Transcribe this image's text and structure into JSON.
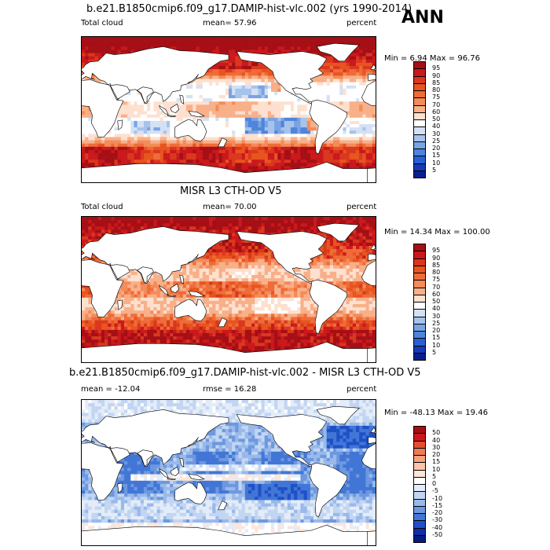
{
  "season": "ANN",
  "panels": [
    {
      "title": "b.e21.B1850cmip6.f09_g17.DAMIP-hist-vlc.002 (yrs 1990-2014)",
      "left_label": "Total cloud",
      "center_label": "mean=  57.96",
      "right_label": "percent",
      "minmax": "Min =   6.94 Max =  96.76",
      "colorbar": {
        "levels": [
          "95",
          "90",
          "85",
          "80",
          "75",
          "70",
          "60",
          "50",
          "40",
          "30",
          "25",
          "20",
          "15",
          "10",
          "5"
        ],
        "colors": [
          "#a50f15",
          "#cb181d",
          "#d9381e",
          "#e8541f",
          "#ef6c39",
          "#f38b5a",
          "#f8b089",
          "#fde0cf",
          "#ffffff",
          "#d4e1f5",
          "#a6c3ec",
          "#7aa3e3",
          "#4f84dc",
          "#2a5fd3",
          "#1739b8",
          "#0a1f8f"
        ]
      },
      "pattern": "model"
    },
    {
      "title": "MISR L3 CTH-OD V5",
      "left_label": "Total cloud",
      "center_label": "mean=  70.00",
      "right_label": "percent",
      "minmax": "Min =  14.34 Max = 100.00",
      "colorbar": {
        "levels": [
          "95",
          "90",
          "85",
          "80",
          "75",
          "70",
          "60",
          "50",
          "40",
          "30",
          "25",
          "20",
          "15",
          "10",
          "5"
        ],
        "colors": [
          "#a50f15",
          "#cb181d",
          "#d9381e",
          "#e8541f",
          "#ef6c39",
          "#f38b5a",
          "#f8b089",
          "#fde0cf",
          "#ffffff",
          "#d4e1f5",
          "#a6c3ec",
          "#7aa3e3",
          "#4f84dc",
          "#2a5fd3",
          "#1739b8",
          "#0a1f8f"
        ]
      },
      "pattern": "obs"
    },
    {
      "title": "b.e21.B1850cmip6.f09_g17.DAMIP-hist-vlc.002 - MISR L3 CTH-OD V5",
      "left_label": "mean = -12.04",
      "center_label": "rmse =  16.28",
      "right_label": "percent",
      "minmax": "Min = -48.13 Max =  19.46",
      "colorbar": {
        "levels": [
          "50",
          "40",
          "30",
          "20",
          "15",
          "10",
          "5",
          "0",
          "-5",
          "-10",
          "-15",
          "-20",
          "-30",
          "-40",
          "-50"
        ],
        "colors": [
          "#a50f15",
          "#cb181d",
          "#e05030",
          "#ef7b55",
          "#f5a07f",
          "#f9c4aa",
          "#fde5d8",
          "#ffffff",
          "#e3ecf8",
          "#c2d5f2",
          "#98b9ea",
          "#6d98e0",
          "#4276d6",
          "#2050c8",
          "#0d2fa8",
          "#061a80"
        ]
      },
      "pattern": "diff"
    }
  ]
}
